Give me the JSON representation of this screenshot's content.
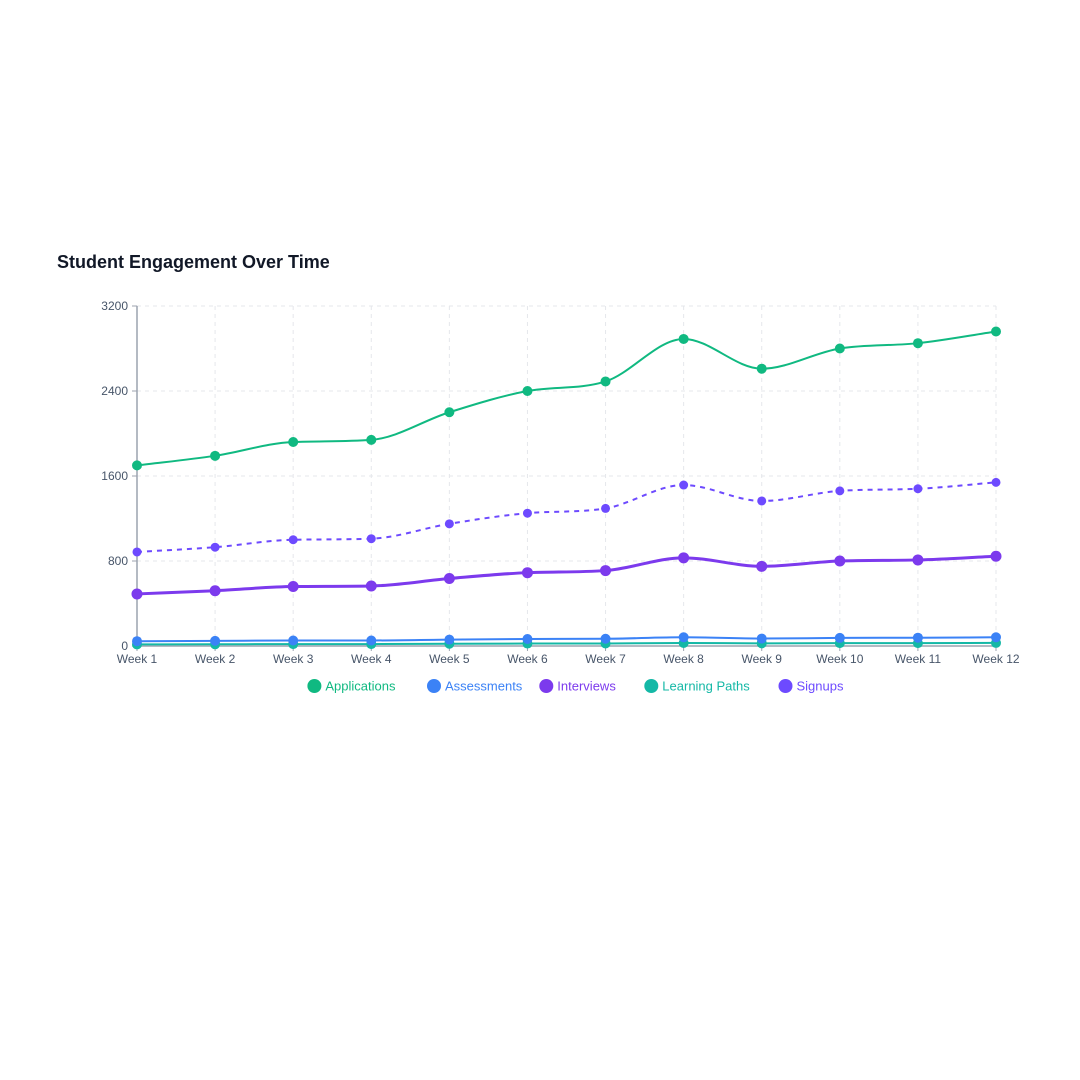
{
  "chart_data": {
    "type": "line",
    "title": "Student Engagement Over Time",
    "xlabel": "",
    "ylabel": "",
    "categories": [
      "Week 1",
      "Week 2",
      "Week 3",
      "Week 4",
      "Week 5",
      "Week 6",
      "Week 7",
      "Week 8",
      "Week 9",
      "Week 10",
      "Week 11",
      "Week 12"
    ],
    "ylim": [
      0,
      3200
    ],
    "yticks": [
      0,
      800,
      1600,
      2400,
      3200
    ],
    "grid": true,
    "legend_position": "bottom",
    "series": [
      {
        "name": "Applications",
        "color": "#10b981",
        "style": "solid",
        "values": [
          1700,
          1790,
          1920,
          1940,
          2200,
          2400,
          2490,
          2890,
          2610,
          2800,
          2850,
          2960
        ]
      },
      {
        "name": "Assessments",
        "color": "#3b82f6",
        "style": "solid",
        "values": [
          45,
          48,
          52,
          52,
          60,
          66,
          68,
          82,
          70,
          76,
          78,
          82
        ]
      },
      {
        "name": "Interviews",
        "color": "#7c3aed",
        "style": "solid",
        "values": [
          490,
          520,
          560,
          565,
          635,
          690,
          710,
          830,
          750,
          800,
          810,
          845
        ]
      },
      {
        "name": "Learning Paths",
        "color": "#14b8a6",
        "style": "solid",
        "values": [
          15,
          16,
          18,
          18,
          21,
          23,
          24,
          28,
          25,
          27,
          27,
          29
        ]
      },
      {
        "name": "Signups",
        "color": "#6d4aff",
        "style": "dashed",
        "values": [
          885,
          930,
          1000,
          1010,
          1150,
          1250,
          1295,
          1515,
          1365,
          1460,
          1480,
          1540
        ]
      }
    ]
  }
}
